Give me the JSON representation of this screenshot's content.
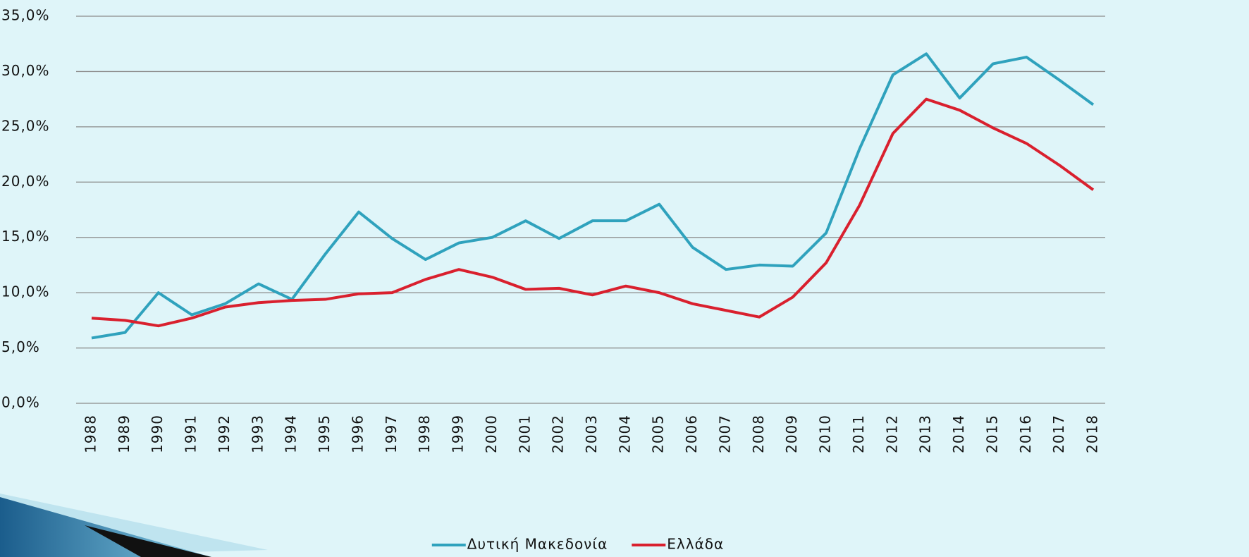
{
  "chart_data": {
    "type": "line",
    "categories": [
      "1988",
      "1989",
      "1990",
      "1991",
      "1992",
      "1993",
      "1994",
      "1995",
      "1996",
      "1997",
      "1998",
      "1999",
      "2000",
      "2001",
      "2002",
      "2003",
      "2004",
      "2005",
      "2006",
      "2007",
      "2008",
      "2009",
      "2010",
      "2011",
      "2012",
      "2013",
      "2014",
      "2015",
      "2016",
      "2017",
      "2018"
    ],
    "series": [
      {
        "name": "Δυτική Μακεδονία",
        "color": "#2fa2bd",
        "values": [
          5.9,
          6.4,
          10.0,
          8.0,
          9.0,
          10.8,
          9.4,
          13.5,
          17.3,
          14.9,
          13.0,
          14.5,
          15.0,
          16.5,
          14.9,
          16.5,
          16.5,
          18.0,
          14.1,
          12.1,
          12.5,
          12.4,
          15.4,
          23.0,
          29.7,
          31.6,
          27.6,
          30.7,
          31.3,
          29.2,
          27.0
        ]
      },
      {
        "name": "Ελλάδα",
        "color": "#d9202e",
        "values": [
          7.7,
          7.5,
          7.0,
          7.7,
          8.7,
          9.1,
          9.3,
          9.4,
          9.9,
          10.0,
          11.2,
          12.1,
          11.4,
          10.3,
          10.4,
          9.8,
          10.6,
          10.0,
          9.0,
          8.4,
          7.8,
          9.6,
          12.7,
          17.9,
          24.4,
          27.5,
          26.5,
          24.9,
          23.5,
          21.5,
          19.3
        ]
      }
    ],
    "ylim": [
      0,
      35
    ],
    "yticks": [
      {
        "value": 0,
        "label": "0,0%"
      },
      {
        "value": 5,
        "label": "5,0%"
      },
      {
        "value": 10,
        "label": "10,0%"
      },
      {
        "value": 15,
        "label": "15,0%"
      },
      {
        "value": 20,
        "label": "20,0%"
      },
      {
        "value": 25,
        "label": "25,0%"
      },
      {
        "value": 30,
        "label": "30,0%"
      },
      {
        "value": 35,
        "label": "35,0%"
      }
    ],
    "grid": true
  }
}
